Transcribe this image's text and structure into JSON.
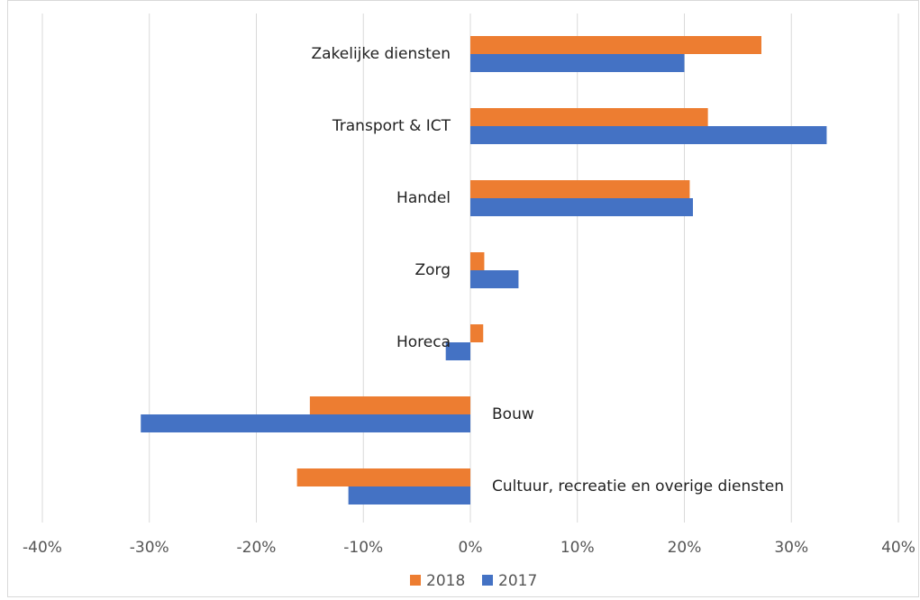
{
  "chart_data": {
    "type": "hbar",
    "categories": [
      "Zakelijke diensten",
      "Transport & ICT",
      "Handel",
      "Zorg",
      "Horeca",
      "Bouw",
      "Cultuur, recreatie en overige diensten"
    ],
    "series": [
      {
        "name": "2018",
        "color": "#ED7D31",
        "values": [
          27.2,
          22.2,
          20.5,
          1.3,
          1.2,
          -15.0,
          -16.2
        ]
      },
      {
        "name": "2017",
        "color": "#4472C4",
        "values": [
          20.0,
          33.3,
          20.8,
          4.5,
          -2.3,
          -30.8,
          -11.4
        ]
      }
    ],
    "xlim": [
      -40,
      40
    ],
    "xticks": [
      {
        "value": -40,
        "label": "-40%"
      },
      {
        "value": -30,
        "label": "-30%"
      },
      {
        "value": -20,
        "label": "-20%"
      },
      {
        "value": -10,
        "label": "-10%"
      },
      {
        "value": 0,
        "label": "0%"
      },
      {
        "value": 10,
        "label": "10%"
      },
      {
        "value": 20,
        "label": "20%"
      },
      {
        "value": 30,
        "label": "30%"
      },
      {
        "value": 40,
        "label": "40%"
      }
    ],
    "grid": true,
    "legend": "bottom"
  }
}
